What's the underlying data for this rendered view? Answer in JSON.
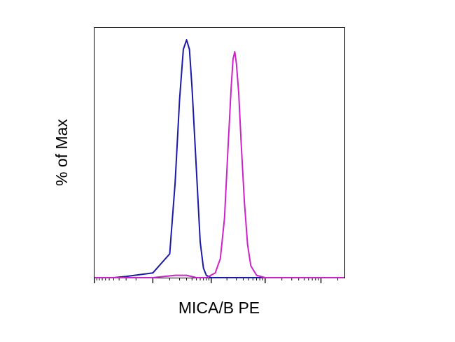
{
  "chart_data": {
    "type": "line",
    "title": "",
    "xlabel": "MICA/B PE",
    "ylabel": "% of Max",
    "x_scale": "log",
    "xlim": [
      -1000,
      262144
    ],
    "ylim": [
      0,
      105
    ],
    "grid": false,
    "legend": "none",
    "colors": {
      "frame": "#000000",
      "background": "#ffffff"
    },
    "series": [
      {
        "color": "#1a1aa6",
        "x": [
          -1000,
          -400,
          -200,
          0,
          100,
          150,
          200,
          250,
          300,
          350,
          400,
          500,
          600,
          700,
          800,
          1000,
          2000,
          10000,
          100000,
          262144
        ],
        "y": [
          0,
          0,
          0.5,
          2,
          10,
          40,
          75,
          96,
          100,
          96,
          80,
          45,
          15,
          4,
          1,
          0,
          0,
          0,
          0,
          0
        ]
      },
      {
        "color": "#cc22cc",
        "x": [
          -1000,
          0,
          150,
          300,
          500,
          800,
          1200,
          1500,
          1800,
          2100,
          2400,
          2600,
          2800,
          3000,
          3300,
          3700,
          4200,
          4800,
          5500,
          7000,
          10000,
          100000,
          262144
        ],
        "y": [
          0,
          0,
          1,
          1,
          0,
          0,
          2,
          8,
          25,
          55,
          80,
          92,
          95,
          90,
          78,
          55,
          32,
          14,
          5,
          1,
          0,
          0,
          0
        ]
      }
    ]
  }
}
